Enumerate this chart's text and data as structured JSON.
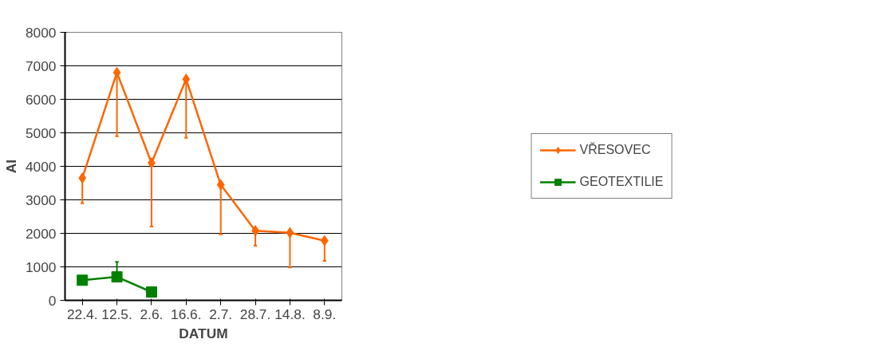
{
  "chart_data": {
    "type": "line",
    "xlabel": "DATUM",
    "ylabel": "AI",
    "categories": [
      "22.4.",
      "12.5.",
      "2.6.",
      "16.6.",
      "2.7.",
      "28.7.",
      "14.8.",
      "8.9."
    ],
    "ylim": [
      0,
      8000
    ],
    "yticks": [
      0,
      1000,
      2000,
      3000,
      4000,
      5000,
      6000,
      7000,
      8000
    ],
    "grid": "y",
    "legend": "right",
    "series": [
      {
        "name": "VŘESOVEC",
        "color": "#ff6600",
        "marker": "diamond",
        "values": [
          3650,
          6800,
          4100,
          6600,
          3450,
          2080,
          2020,
          1780
        ],
        "errors": [
          [
            2900,
            3650
          ],
          [
            4900,
            6800
          ],
          [
            2200,
            4100
          ],
          [
            4850,
            6600
          ],
          [
            1970,
            3450
          ],
          [
            1630,
            2080
          ],
          [
            980,
            2020
          ],
          [
            1180,
            1780
          ]
        ]
      },
      {
        "name": "GEOTEXTILIE",
        "color": "#008000",
        "marker": "square",
        "values": [
          600,
          700,
          250,
          null,
          null,
          null,
          null,
          null
        ],
        "errors": [
          null,
          [
            700,
            1150
          ],
          null,
          null,
          null,
          null,
          null,
          null
        ]
      }
    ]
  }
}
